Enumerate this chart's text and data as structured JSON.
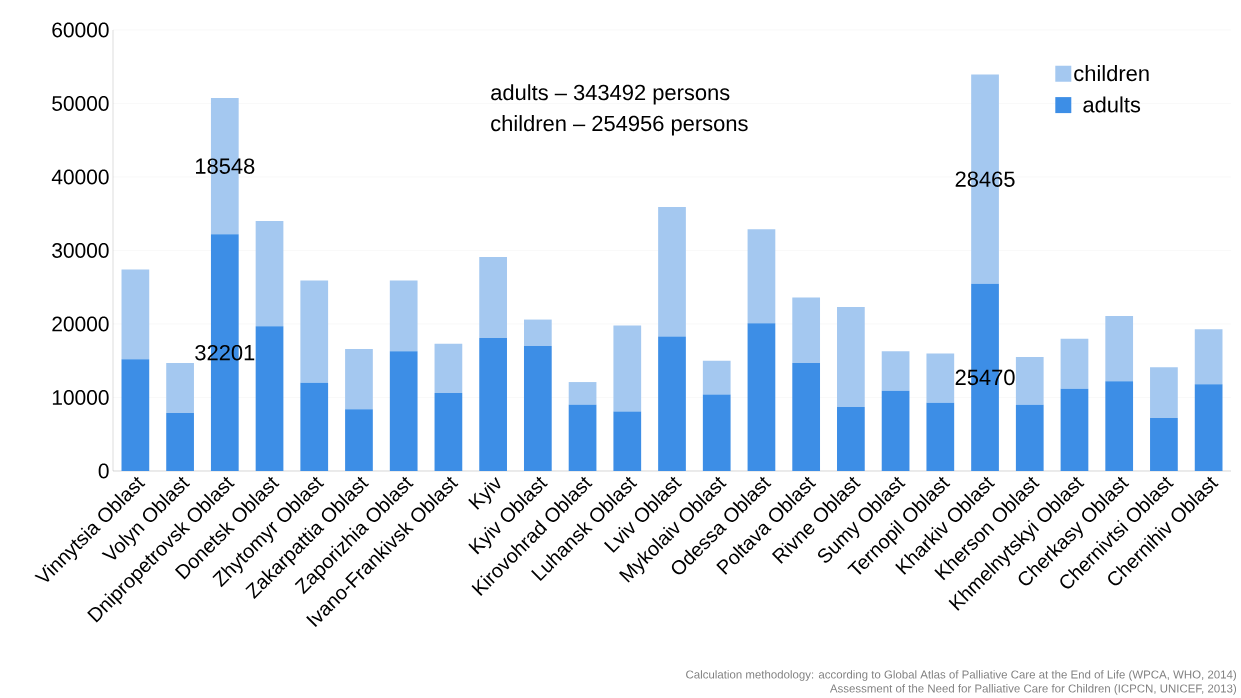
{
  "chart_data": {
    "type": "bar",
    "stacked": true,
    "categories": [
      "Vinnytsia Oblast",
      "Volyn Oblast",
      "Dnipropetrovsk Oblast",
      "Donetsk Oblast",
      "Zhytomyr Oblast",
      "Zakarpattia Oblast",
      "Zaporizhia Oblast",
      "Ivano-Frankivsk Oblast",
      "Kyiv",
      "Kyiv Oblast",
      "Kirovohrad Oblast",
      "Luhansk Oblast",
      "Lviv Oblast",
      "Mykolaiv Oblast",
      "Odessa Oblast",
      "Poltava Oblast",
      "Rivne Oblast",
      "Sumy Oblast",
      "Ternopil Oblast",
      "Kharkiv Oblast",
      "Kherson Oblast",
      "Khmelnytskyi Oblast",
      "Cherkasy Oblast",
      "Chernivtsi Oblast",
      "Chernihiv Oblast"
    ],
    "series": [
      {
        "name": "adults",
        "color": "#3d8ee6",
        "values": [
          15200,
          7900,
          32201,
          19700,
          12000,
          8400,
          16300,
          10600,
          18100,
          17000,
          9000,
          8100,
          18300,
          10400,
          20100,
          14700,
          8700,
          10900,
          9300,
          25470,
          9000,
          11200,
          12200,
          7200,
          11800
        ],
        "value_labels": [
          null,
          null,
          "32201",
          null,
          null,
          null,
          null,
          null,
          null,
          null,
          null,
          null,
          null,
          null,
          null,
          null,
          null,
          null,
          null,
          "25470",
          null,
          null,
          null,
          null,
          null
        ]
      },
      {
        "name": "children",
        "color": "#a4c8f0",
        "values": [
          12200,
          6800,
          18548,
          14300,
          13900,
          8200,
          9600,
          6700,
          11000,
          3600,
          3100,
          11700,
          17600,
          4600,
          12800,
          8900,
          13600,
          5400,
          6700,
          28465,
          6500,
          6800,
          8900,
          6900,
          7500
        ],
        "value_labels": [
          null,
          null,
          "18548",
          null,
          null,
          null,
          null,
          null,
          null,
          null,
          null,
          null,
          null,
          null,
          null,
          null,
          null,
          null,
          null,
          "28465",
          null,
          null,
          null,
          null,
          null
        ]
      }
    ],
    "ylim": [
      0,
      60000
    ],
    "yticks": [
      0,
      10000,
      20000,
      30000,
      40000,
      50000,
      60000
    ],
    "grid": "y",
    "legend": "top right",
    "annotations": [
      "adults – 343492 persons",
      "children – 254956 persons",
      "Calculation methodology: according to Global Atlas of Palliative Care at the End of Life (WPCA, WHO, 2014)",
      "Assessment of the Need for Palliative Care for Children (ICPCN, UNICEF, 2013)"
    ]
  }
}
